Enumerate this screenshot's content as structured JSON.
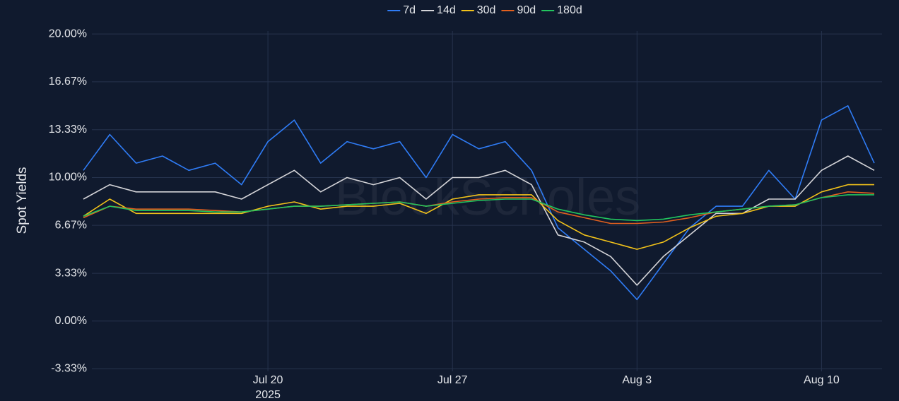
{
  "chart_data": {
    "type": "line",
    "y_label": "Spot Yields",
    "watermark": "BlockScholes",
    "x_year_label": "2025",
    "x": [
      "2025-07-13",
      "2025-07-14",
      "2025-07-15",
      "2025-07-16",
      "2025-07-17",
      "2025-07-18",
      "2025-07-19",
      "2025-07-20",
      "2025-07-21",
      "2025-07-22",
      "2025-07-23",
      "2025-07-24",
      "2025-07-25",
      "2025-07-26",
      "2025-07-27",
      "2025-07-28",
      "2025-07-29",
      "2025-07-30",
      "2025-07-31",
      "2025-08-01",
      "2025-08-02",
      "2025-08-03",
      "2025-08-04",
      "2025-08-05",
      "2025-08-06",
      "2025-08-07",
      "2025-08-08",
      "2025-08-09",
      "2025-08-10",
      "2025-08-11",
      "2025-08-12"
    ],
    "series": [
      {
        "name": "7d",
        "color": "#2f7cf6",
        "values": [
          10.5,
          13,
          11,
          11.5,
          10.5,
          11,
          9.5,
          12.5,
          14,
          11,
          12.5,
          12,
          12.5,
          10,
          13,
          12,
          12.5,
          10.5,
          6.5,
          5,
          3.5,
          1.5,
          4,
          6.5,
          8,
          8,
          10.5,
          8.5,
          14,
          15,
          11
        ]
      },
      {
        "name": "14d",
        "color": "#d4d4d8",
        "values": [
          8.5,
          9.5,
          9,
          9,
          9,
          9,
          8.5,
          9.5,
          10.5,
          9,
          10,
          9.5,
          10,
          8.5,
          10,
          10,
          10.5,
          9.5,
          6,
          5.5,
          4.5,
          2.5,
          4.5,
          6,
          7.5,
          7.5,
          8.5,
          8.5,
          10.5,
          11.5,
          10.5
        ]
      },
      {
        "name": "30d",
        "color": "#f2c21a",
        "values": [
          7.3,
          8.5,
          7.5,
          7.5,
          7.5,
          7.5,
          7.5,
          8,
          8.3,
          7.8,
          8,
          8,
          8.2,
          7.5,
          8.5,
          8.8,
          8.8,
          8.8,
          7,
          6,
          5.5,
          5,
          5.5,
          6.5,
          7.3,
          7.5,
          8,
          8,
          9,
          9.5,
          9.5
        ]
      },
      {
        "name": "90d",
        "color": "#e2601e",
        "values": [
          7.2,
          8,
          7.8,
          7.8,
          7.8,
          7.7,
          7.6,
          7.8,
          8,
          8,
          8.1,
          8.2,
          8.3,
          8,
          8.3,
          8.5,
          8.6,
          8.6,
          7.6,
          7.2,
          6.8,
          6.8,
          6.9,
          7.2,
          7.6,
          7.8,
          8,
          8.1,
          8.6,
          9,
          8.9
        ]
      },
      {
        "name": "180d",
        "color": "#22c55e",
        "values": [
          7.3,
          8,
          7.7,
          7.7,
          7.7,
          7.6,
          7.6,
          7.8,
          8,
          8,
          8.1,
          8.2,
          8.3,
          8,
          8.2,
          8.4,
          8.5,
          8.5,
          7.8,
          7.4,
          7.1,
          7,
          7.1,
          7.4,
          7.6,
          7.8,
          8,
          8.1,
          8.6,
          8.8,
          8.8
        ]
      }
    ],
    "xlim": [
      "2025-07-13",
      "2025-08-12"
    ],
    "xticks": [
      {
        "value": "2025-07-20",
        "label": "Jul 20"
      },
      {
        "value": "2025-07-27",
        "label": "Jul 27"
      },
      {
        "value": "2025-08-03",
        "label": "Aug 3"
      },
      {
        "value": "2025-08-10",
        "label": "Aug 10"
      }
    ],
    "ylim": [
      -3.7,
      20.4
    ],
    "yticks": [
      {
        "value": 20,
        "label": "20.00%"
      },
      {
        "value": 16.67,
        "label": "16.67%"
      },
      {
        "value": 13.33,
        "label": "13.33%"
      },
      {
        "value": 10,
        "label": "10.00%"
      },
      {
        "value": 6.67,
        "label": "6.67%"
      },
      {
        "value": 3.33,
        "label": "3.33%"
      },
      {
        "value": 0,
        "label": "0.00%"
      },
      {
        "value": -3.33,
        "label": "-3.33%"
      }
    ],
    "grid": true,
    "legend": "top"
  }
}
